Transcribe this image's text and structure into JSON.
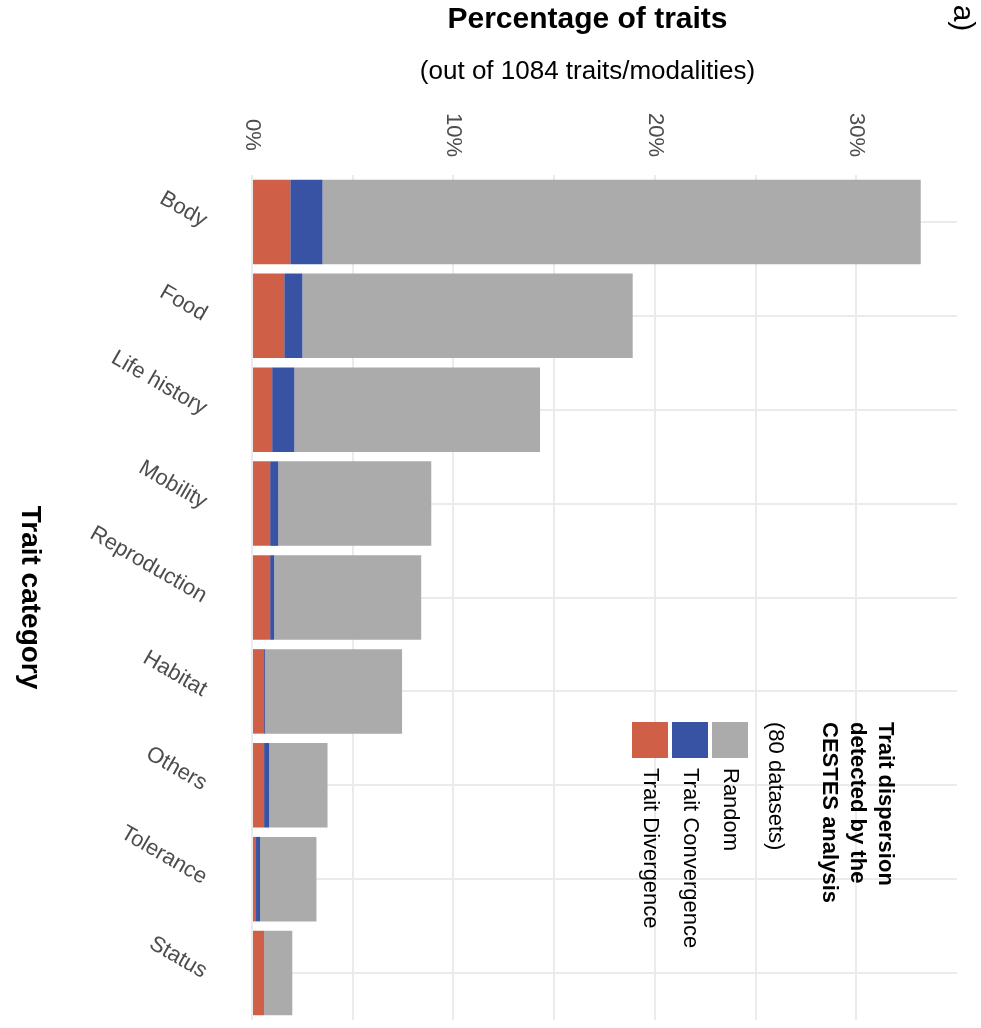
{
  "chart_data": {
    "type": "bar",
    "orientation": "horizontal",
    "stacked": true,
    "title": "Percentage of traits",
    "subtitle": "(out of 1084 traits/modalities)",
    "ylabel": "Trait category",
    "legend_title": "Trait dispersion\ndetected by the\nCESTES analysis\n(80 datasets)",
    "annotations": [
      "a)"
    ],
    "categories": [
      "Body",
      "Food",
      "Life history",
      "Mobility",
      "Reproduction",
      "Habitat",
      "Others",
      "Tolerance",
      "Status"
    ],
    "series": [
      {
        "name": "Trait Divergence",
        "color": "#d05f47",
        "values": [
          1.9,
          1.6,
          1.0,
          0.9,
          0.9,
          0.6,
          0.6,
          0.2,
          0.6
        ]
      },
      {
        "name": "Trait Convergence",
        "color": "#3853a4",
        "values": [
          1.6,
          0.9,
          1.1,
          0.4,
          0.2,
          0.05,
          0.25,
          0.2,
          0
        ]
      },
      {
        "name": "Random",
        "color": "#aaabaa",
        "values": [
          29.7,
          16.4,
          12.2,
          7.6,
          7.3,
          6.8,
          2.9,
          2.8,
          1.4
        ]
      }
    ],
    "xlim": [
      0,
      35
    ],
    "xticks": [
      {
        "value": 0,
        "label": "0%"
      },
      {
        "value": 5,
        "label": null
      },
      {
        "value": 10,
        "label": "10%"
      },
      {
        "value": 15,
        "label": null
      },
      {
        "value": 20,
        "label": "20%"
      },
      {
        "value": 25,
        "label": null
      },
      {
        "value": 30,
        "label": "30%"
      }
    ],
    "grid": true,
    "legend": "bottom right"
  }
}
